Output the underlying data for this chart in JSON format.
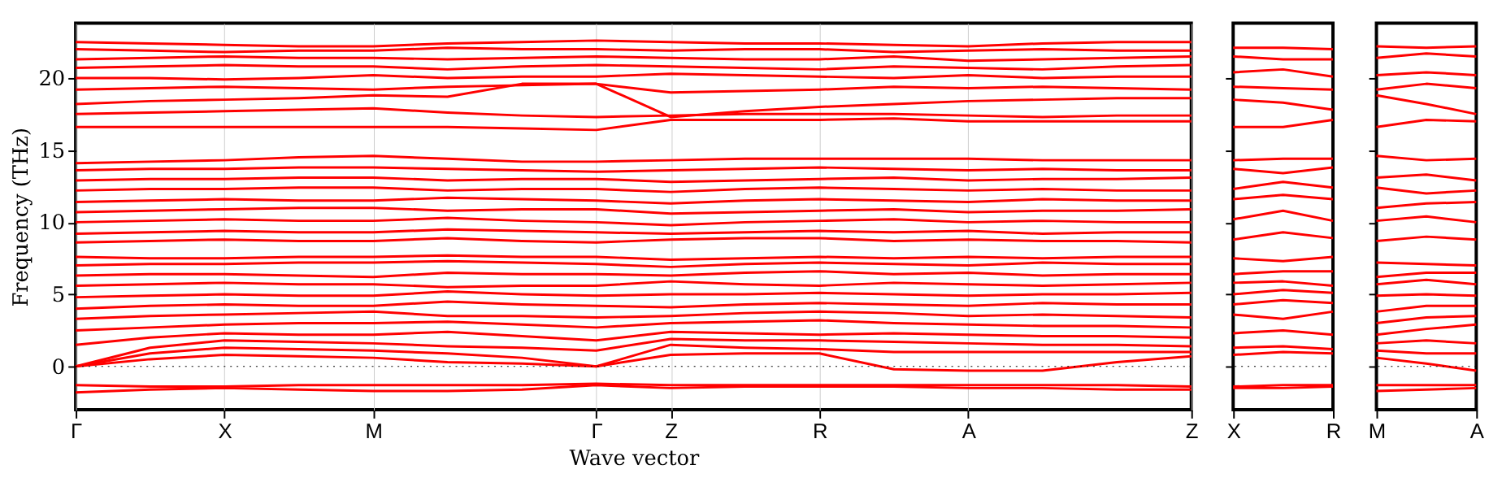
{
  "chart_data": [
    {
      "type": "line",
      "xlabel": "Wave vector",
      "ylabel": "Frequency (THz)",
      "categories": [
        "Γ",
        null,
        "X",
        null,
        "M",
        null,
        null,
        "Γ",
        "Z",
        null,
        "R",
        null,
        "A",
        null,
        null,
        "Z"
      ],
      "ylim": [
        -3,
        23.8
      ],
      "yticks": [
        0,
        5,
        10,
        15,
        20
      ],
      "grid": "x",
      "legend": false,
      "line_style": "solid",
      "ref_lines": [
        {
          "axis": "y",
          "value": 0,
          "color": "#000000",
          "line_style": "dotted"
        }
      ],
      "series": [
        {
          "color": "#ff0000",
          "values": [
            -1.8,
            -1.6,
            -1.5,
            -1.6,
            -1.7,
            -1.7,
            -1.6,
            -1.3,
            -1.5,
            -1.4,
            -1.4,
            -1.4,
            -1.5,
            -1.5,
            -1.6,
            -1.6
          ]
        },
        {
          "color": "#ff0000",
          "values": [
            -1.3,
            -1.4,
            -1.4,
            -1.3,
            -1.3,
            -1.3,
            -1.3,
            -1.2,
            -1.3,
            -1.3,
            -1.3,
            -1.3,
            -1.3,
            -1.3,
            -1.3,
            -1.4
          ]
        },
        {
          "color": "#ff0000",
          "values": [
            0,
            0.5,
            0.8,
            0.7,
            0.6,
            0.3,
            0.2,
            0,
            0.8,
            0.9,
            0.9,
            -0.2,
            -0.3,
            -0.3,
            0.3,
            0.7
          ]
        },
        {
          "color": "#ff0000",
          "values": [
            0,
            0.9,
            1.3,
            1.2,
            1.1,
            0.9,
            0.6,
            0,
            1.5,
            1.3,
            1.2,
            1.0,
            1.0,
            1.0,
            1.0,
            1.0
          ]
        },
        {
          "color": "#ff0000",
          "values": [
            0,
            1.3,
            1.8,
            1.7,
            1.6,
            1.4,
            1.3,
            1.1,
            1.9,
            1.8,
            1.8,
            1.7,
            1.6,
            1.5,
            1.5,
            1.4
          ]
        },
        {
          "color": "#ff0000",
          "values": [
            1.5,
            2.0,
            2.3,
            2.2,
            2.2,
            2.4,
            2.1,
            1.8,
            2.4,
            2.3,
            2.2,
            2.3,
            2.2,
            2.1,
            2.1,
            2.0
          ]
        },
        {
          "color": "#ff0000",
          "values": [
            2.5,
            2.7,
            2.9,
            3.0,
            3.0,
            3.1,
            2.9,
            2.7,
            3.0,
            3.1,
            3.2,
            3.0,
            2.9,
            2.8,
            2.8,
            2.7
          ]
        },
        {
          "color": "#ff0000",
          "values": [
            3.3,
            3.5,
            3.6,
            3.7,
            3.8,
            3.5,
            3.5,
            3.4,
            3.5,
            3.7,
            3.8,
            3.7,
            3.5,
            3.6,
            3.5,
            3.4
          ]
        },
        {
          "color": "#ff0000",
          "values": [
            4.0,
            4.2,
            4.3,
            4.2,
            4.2,
            4.5,
            4.3,
            4.2,
            4.1,
            4.3,
            4.4,
            4.3,
            4.2,
            4.4,
            4.3,
            4.3
          ]
        },
        {
          "color": "#ff0000",
          "values": [
            4.8,
            4.9,
            5.0,
            4.9,
            4.9,
            5.2,
            5.0,
            4.9,
            5.0,
            5.0,
            5.1,
            5.0,
            4.9,
            5.0,
            5.0,
            5.1
          ]
        },
        {
          "color": "#ff0000",
          "values": [
            5.6,
            5.7,
            5.8,
            5.7,
            5.7,
            5.5,
            5.6,
            5.6,
            5.9,
            5.7,
            5.6,
            5.8,
            5.7,
            5.6,
            5.7,
            5.8
          ]
        },
        {
          "color": "#ff0000",
          "values": [
            6.3,
            6.4,
            6.4,
            6.3,
            6.2,
            6.5,
            6.4,
            6.4,
            6.3,
            6.5,
            6.6,
            6.4,
            6.5,
            6.3,
            6.4,
            6.4
          ]
        },
        {
          "color": "#ff0000",
          "values": [
            7.0,
            7.1,
            7.1,
            7.2,
            7.2,
            7.3,
            7.2,
            7.1,
            6.9,
            7.1,
            7.2,
            7.1,
            7.0,
            7.2,
            7.1,
            7.1
          ]
        },
        {
          "color": "#ff0000",
          "values": [
            7.6,
            7.5,
            7.5,
            7.6,
            7.6,
            7.7,
            7.6,
            7.6,
            7.4,
            7.5,
            7.6,
            7.5,
            7.6,
            7.5,
            7.6,
            7.6
          ]
        },
        {
          "color": "#ff0000",
          "values": [
            8.6,
            8.7,
            8.8,
            8.7,
            8.7,
            8.9,
            8.7,
            8.6,
            8.8,
            8.9,
            8.9,
            8.7,
            8.8,
            8.7,
            8.7,
            8.6
          ]
        },
        {
          "color": "#ff0000",
          "values": [
            9.2,
            9.3,
            9.4,
            9.3,
            9.3,
            9.5,
            9.4,
            9.3,
            9.2,
            9.3,
            9.4,
            9.3,
            9.4,
            9.2,
            9.3,
            9.3
          ]
        },
        {
          "color": "#ff0000",
          "values": [
            10.0,
            10.1,
            10.2,
            10.1,
            10.1,
            10.3,
            10.1,
            10.0,
            9.8,
            10.0,
            10.1,
            10.2,
            10.0,
            10.1,
            10.0,
            10.0
          ]
        },
        {
          "color": "#ff0000",
          "values": [
            10.7,
            10.8,
            10.9,
            11.0,
            11.0,
            10.8,
            10.9,
            10.9,
            10.6,
            10.7,
            10.8,
            10.9,
            10.7,
            10.8,
            10.8,
            10.9
          ]
        },
        {
          "color": "#ff0000",
          "values": [
            11.4,
            11.5,
            11.6,
            11.5,
            11.5,
            11.7,
            11.6,
            11.5,
            11.3,
            11.5,
            11.6,
            11.5,
            11.4,
            11.6,
            11.5,
            11.5
          ]
        },
        {
          "color": "#ff0000",
          "values": [
            12.2,
            12.3,
            12.3,
            12.4,
            12.4,
            12.2,
            12.3,
            12.3,
            12.1,
            12.3,
            12.4,
            12.3,
            12.2,
            12.3,
            12.2,
            12.2
          ]
        },
        {
          "color": "#ff0000",
          "values": [
            12.9,
            13.0,
            13.0,
            13.1,
            13.1,
            12.9,
            13.0,
            13.0,
            12.8,
            12.9,
            13.0,
            13.1,
            12.9,
            13.0,
            13.0,
            13.1
          ]
        },
        {
          "color": "#ff0000",
          "values": [
            13.6,
            13.7,
            13.7,
            13.8,
            13.8,
            13.7,
            13.6,
            13.5,
            13.6,
            13.7,
            13.8,
            13.7,
            13.6,
            13.7,
            13.6,
            13.6
          ]
        },
        {
          "color": "#ff0000",
          "values": [
            14.1,
            14.2,
            14.3,
            14.5,
            14.6,
            14.4,
            14.2,
            14.2,
            14.3,
            14.4,
            14.4,
            14.4,
            14.4,
            14.3,
            14.3,
            14.3
          ]
        },
        {
          "color": "#ff0000",
          "values": [
            16.6,
            16.6,
            16.6,
            16.6,
            16.6,
            16.6,
            16.5,
            16.4,
            17.1,
            17.1,
            17.1,
            17.2,
            17.0,
            17.0,
            17.0,
            17.0
          ]
        },
        {
          "color": "#ff0000",
          "values": [
            17.5,
            17.6,
            17.7,
            17.8,
            17.9,
            17.6,
            17.4,
            17.3,
            17.4,
            17.5,
            17.5,
            17.5,
            17.4,
            17.3,
            17.4,
            17.4
          ]
        },
        {
          "color": "#ff0000",
          "values": [
            18.2,
            18.4,
            18.5,
            18.6,
            18.8,
            18.7,
            19.6,
            19.6,
            17.3,
            17.7,
            18.0,
            18.2,
            18.4,
            18.5,
            18.6,
            18.6
          ]
        },
        {
          "color": "#ff0000",
          "values": [
            19.2,
            19.3,
            19.4,
            19.3,
            19.2,
            19.4,
            19.5,
            19.6,
            19.0,
            19.1,
            19.2,
            19.4,
            19.3,
            19.4,
            19.3,
            19.2
          ]
        },
        {
          "color": "#ff0000",
          "values": [
            20.0,
            20.0,
            19.9,
            20.0,
            20.2,
            20.0,
            20.1,
            20.1,
            20.3,
            20.2,
            20.1,
            20.0,
            20.2,
            20.0,
            20.1,
            20.1
          ]
        },
        {
          "color": "#ff0000",
          "values": [
            20.7,
            20.8,
            20.9,
            20.8,
            20.8,
            20.6,
            20.8,
            20.9,
            20.8,
            20.7,
            20.6,
            20.8,
            20.7,
            20.6,
            20.8,
            20.9
          ]
        },
        {
          "color": "#ff0000",
          "values": [
            21.3,
            21.4,
            21.5,
            21.4,
            21.4,
            21.3,
            21.4,
            21.5,
            21.4,
            21.3,
            21.3,
            21.5,
            21.2,
            21.3,
            21.4,
            21.5
          ]
        },
        {
          "color": "#ff0000",
          "values": [
            22.0,
            21.9,
            21.8,
            21.9,
            21.9,
            22.1,
            22.0,
            22.0,
            21.9,
            22.0,
            22.0,
            21.8,
            21.9,
            22.0,
            21.9,
            21.9
          ]
        },
        {
          "color": "#ff0000",
          "values": [
            22.5,
            22.4,
            22.3,
            22.2,
            22.2,
            22.4,
            22.5,
            22.6,
            22.5,
            22.4,
            22.4,
            22.3,
            22.2,
            22.4,
            22.5,
            22.5
          ]
        }
      ]
    },
    {
      "type": "line",
      "categories": [
        "X",
        null,
        "R"
      ],
      "ylim": [
        -3,
        23.8
      ],
      "yticks": [
        0,
        5,
        10,
        15,
        20
      ],
      "tick_labels": "x",
      "legend": false,
      "line_style": "solid",
      "ref_lines": [
        {
          "axis": "y",
          "value": 0,
          "color": "#000000",
          "line_style": "dotted"
        }
      ],
      "series": [
        {
          "color": "#ff0000",
          "values": [
            -1.5,
            -1.5,
            -1.4
          ]
        },
        {
          "color": "#ff0000",
          "values": [
            -1.4,
            -1.3,
            -1.3
          ]
        },
        {
          "color": "#ff0000",
          "values": [
            0.8,
            1.0,
            0.9
          ]
        },
        {
          "color": "#ff0000",
          "values": [
            1.3,
            1.4,
            1.2
          ]
        },
        {
          "color": "#ff0000",
          "values": [
            2.3,
            2.5,
            2.2
          ]
        },
        {
          "color": "#ff0000",
          "values": [
            3.6,
            3.3,
            3.8
          ]
        },
        {
          "color": "#ff0000",
          "values": [
            4.3,
            4.6,
            4.4
          ]
        },
        {
          "color": "#ff0000",
          "values": [
            5.0,
            5.3,
            5.1
          ]
        },
        {
          "color": "#ff0000",
          "values": [
            5.8,
            5.9,
            5.6
          ]
        },
        {
          "color": "#ff0000",
          "values": [
            6.4,
            6.6,
            6.6
          ]
        },
        {
          "color": "#ff0000",
          "values": [
            7.5,
            7.3,
            7.6
          ]
        },
        {
          "color": "#ff0000",
          "values": [
            8.8,
            9.3,
            8.9
          ]
        },
        {
          "color": "#ff0000",
          "values": [
            10.2,
            10.8,
            10.1
          ]
        },
        {
          "color": "#ff0000",
          "values": [
            11.6,
            11.9,
            11.6
          ]
        },
        {
          "color": "#ff0000",
          "values": [
            12.3,
            12.8,
            12.4
          ]
        },
        {
          "color": "#ff0000",
          "values": [
            13.7,
            13.4,
            13.8
          ]
        },
        {
          "color": "#ff0000",
          "values": [
            14.3,
            14.4,
            14.4
          ]
        },
        {
          "color": "#ff0000",
          "values": [
            16.6,
            16.6,
            17.1
          ]
        },
        {
          "color": "#ff0000",
          "values": [
            18.5,
            18.3,
            17.8
          ]
        },
        {
          "color": "#ff0000",
          "values": [
            19.4,
            19.3,
            19.2
          ]
        },
        {
          "color": "#ff0000",
          "values": [
            20.4,
            20.6,
            20.1
          ]
        },
        {
          "color": "#ff0000",
          "values": [
            21.5,
            21.3,
            21.3
          ]
        },
        {
          "color": "#ff0000",
          "values": [
            22.1,
            22.1,
            22.0
          ]
        }
      ]
    },
    {
      "type": "line",
      "categories": [
        "M",
        null,
        "A"
      ],
      "ylim": [
        -3,
        23.8
      ],
      "yticks": [
        0,
        5,
        10,
        15,
        20
      ],
      "tick_labels": "x",
      "legend": false,
      "line_style": "solid",
      "ref_lines": [
        {
          "axis": "y",
          "value": 0,
          "color": "#000000",
          "line_style": "dotted"
        }
      ],
      "series": [
        {
          "color": "#ff0000",
          "values": [
            -1.7,
            -1.6,
            -1.5
          ]
        },
        {
          "color": "#ff0000",
          "values": [
            -1.3,
            -1.3,
            -1.3
          ]
        },
        {
          "color": "#ff0000",
          "values": [
            0.6,
            0.2,
            -0.3
          ]
        },
        {
          "color": "#ff0000",
          "values": [
            1.1,
            0.9,
            0.9
          ]
        },
        {
          "color": "#ff0000",
          "values": [
            1.6,
            1.8,
            1.6
          ]
        },
        {
          "color": "#ff0000",
          "values": [
            2.2,
            2.6,
            2.9
          ]
        },
        {
          "color": "#ff0000",
          "values": [
            3.0,
            3.4,
            3.5
          ]
        },
        {
          "color": "#ff0000",
          "values": [
            3.8,
            4.2,
            4.2
          ]
        },
        {
          "color": "#ff0000",
          "values": [
            4.9,
            5.0,
            4.9
          ]
        },
        {
          "color": "#ff0000",
          "values": [
            5.7,
            6.0,
            5.7
          ]
        },
        {
          "color": "#ff0000",
          "values": [
            6.2,
            6.5,
            6.5
          ]
        },
        {
          "color": "#ff0000",
          "values": [
            7.2,
            7.1,
            7.0
          ]
        },
        {
          "color": "#ff0000",
          "values": [
            8.7,
            9.0,
            8.8
          ]
        },
        {
          "color": "#ff0000",
          "values": [
            10.1,
            10.4,
            10.0
          ]
        },
        {
          "color": "#ff0000",
          "values": [
            11.0,
            11.3,
            11.4
          ]
        },
        {
          "color": "#ff0000",
          "values": [
            12.4,
            12.0,
            12.2
          ]
        },
        {
          "color": "#ff0000",
          "values": [
            13.1,
            13.3,
            12.9
          ]
        },
        {
          "color": "#ff0000",
          "values": [
            14.6,
            14.3,
            14.4
          ]
        },
        {
          "color": "#ff0000",
          "values": [
            16.6,
            17.1,
            17.0
          ]
        },
        {
          "color": "#ff0000",
          "values": [
            18.8,
            18.2,
            17.5
          ]
        },
        {
          "color": "#ff0000",
          "values": [
            19.2,
            19.6,
            19.3
          ]
        },
        {
          "color": "#ff0000",
          "values": [
            20.2,
            20.4,
            20.2
          ]
        },
        {
          "color": "#ff0000",
          "values": [
            21.4,
            21.7,
            21.5
          ]
        },
        {
          "color": "#ff0000",
          "values": [
            22.2,
            22.1,
            22.2
          ]
        }
      ]
    }
  ]
}
